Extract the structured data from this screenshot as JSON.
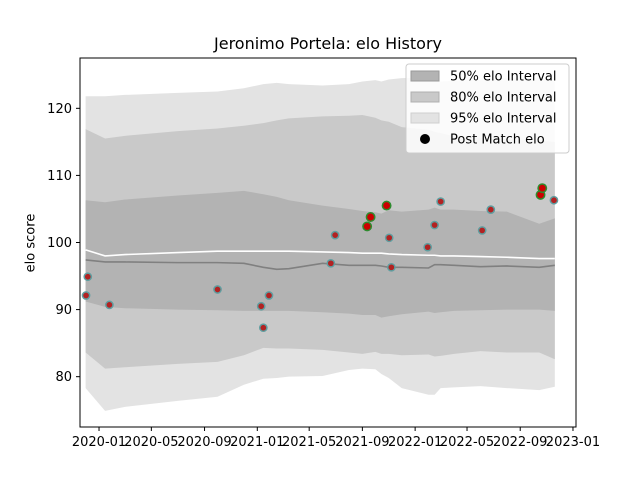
{
  "chart_data": {
    "type": "line",
    "title": "Jeronimo Portela: elo History",
    "xlabel": "",
    "ylabel": "elo score",
    "xlim": [
      "2019-11-18",
      "2023-01-08"
    ],
    "ylim": [
      72.5,
      127.5
    ],
    "x_ticks": [
      "2020-01",
      "2020-05",
      "2020-09",
      "2021-01",
      "2021-05",
      "2021-09",
      "2022-01",
      "2022-05",
      "2022-09",
      "2023-01"
    ],
    "y_ticks": [
      80,
      90,
      100,
      110,
      120
    ],
    "grid": false,
    "legend_position": "top-right",
    "legend": {
      "band50": "50% elo Interval",
      "band80": "80% elo Interval",
      "band95": "95% elo Interval",
      "points": "Post Match elo"
    },
    "colors": {
      "band50": "#b3b3b3",
      "band80": "#c9c9c9",
      "band95": "#e3e3e3",
      "median_line": "#808080",
      "mean_line": "#ffffff",
      "point_fill_red": "#cc0000",
      "point_fill_dark": "#b22222",
      "point_edge_green": "#2e8b2e",
      "point_edge_teal": "#5f9ea0"
    },
    "x": [
      "2019-12-01",
      "2020-01-15",
      "2020-03-01",
      "2020-07-01",
      "2020-10-01",
      "2020-12-01",
      "2021-01-15",
      "2021-02-15",
      "2021-03-15",
      "2021-06-01",
      "2021-08-01",
      "2021-09-01",
      "2021-10-01",
      "2021-10-15",
      "2021-11-01",
      "2021-12-01",
      "2022-02-01",
      "2022-02-15",
      "2022-03-01",
      "2022-04-01",
      "2022-06-01",
      "2022-08-01",
      "2022-10-15",
      "2022-11-20"
    ],
    "bands": {
      "p50_upper": [
        106.3,
        106.0,
        106.4,
        107.0,
        107.4,
        107.7,
        107.2,
        106.8,
        106.3,
        105.5,
        105.0,
        104.7,
        104.5,
        104.3,
        104.8,
        104.6,
        104.9,
        105.2,
        104.9,
        104.9,
        104.7,
        104.6,
        102.8,
        103.6
      ],
      "p50_lower": [
        91.2,
        90.4,
        90.2,
        90.0,
        89.9,
        89.8,
        89.8,
        89.8,
        89.8,
        89.6,
        89.4,
        89.2,
        89.2,
        88.8,
        89.0,
        89.3,
        89.7,
        89.5,
        89.6,
        89.8,
        89.9,
        90.0,
        90.0,
        89.8
      ],
      "p80_upper": [
        116.9,
        115.5,
        115.9,
        116.6,
        117.0,
        117.4,
        117.8,
        118.2,
        118.5,
        118.8,
        118.9,
        119.0,
        118.6,
        118.2,
        118.0,
        117.2,
        116.8,
        116.5,
        116.3,
        115.8,
        115.6,
        115.4,
        115.2,
        115.0
      ],
      "p80_lower": [
        83.6,
        81.2,
        81.4,
        81.9,
        82.2,
        83.2,
        84.3,
        84.2,
        84.2,
        84.0,
        83.6,
        83.4,
        83.7,
        83.4,
        83.4,
        83.2,
        83.3,
        83.0,
        83.1,
        83.4,
        83.8,
        83.6,
        83.6,
        82.6
      ],
      "p95_upper": [
        121.8,
        121.8,
        122.0,
        122.3,
        122.5,
        123.0,
        123.6,
        123.8,
        123.6,
        123.4,
        123.6,
        124.0,
        124.2,
        124.0,
        124.3,
        124.5,
        124.6,
        124.2,
        124.0,
        124.1,
        124.3,
        124.5,
        124.5,
        124.0
      ],
      "p95_lower": [
        78.3,
        74.9,
        75.5,
        76.4,
        77.0,
        78.8,
        79.7,
        79.8,
        80.0,
        80.1,
        81.0,
        81.2,
        81.1,
        80.4,
        79.8,
        78.3,
        77.3,
        77.3,
        78.3,
        78.4,
        78.6,
        78.3,
        78.0,
        78.5
      ]
    },
    "median": [
      97.4,
      97.1,
      97.1,
      97.0,
      97.0,
      96.9,
      96.3,
      96.0,
      96.1,
      96.9,
      96.6,
      96.6,
      96.6,
      96.5,
      96.3,
      96.3,
      96.2,
      96.7,
      96.7,
      96.6,
      96.4,
      96.5,
      96.3,
      96.6
    ],
    "mean": [
      98.9,
      98.0,
      98.2,
      98.5,
      98.7,
      98.7,
      98.7,
      98.7,
      98.7,
      98.6,
      98.5,
      98.4,
      98.4,
      98.4,
      98.3,
      98.2,
      98.1,
      98.1,
      98.0,
      98.0,
      97.9,
      97.8,
      97.6,
      97.6
    ],
    "points": [
      {
        "x": "2019-12-02",
        "y": 92.1,
        "style": "dark"
      },
      {
        "x": "2019-12-06",
        "y": 94.9,
        "style": "dark"
      },
      {
        "x": "2020-01-25",
        "y": 90.7,
        "style": "dark"
      },
      {
        "x": "2020-10-01",
        "y": 93.0,
        "style": "dark"
      },
      {
        "x": "2021-01-10",
        "y": 90.5,
        "style": "dark"
      },
      {
        "x": "2021-01-15",
        "y": 87.3,
        "style": "dark"
      },
      {
        "x": "2021-01-28",
        "y": 92.1,
        "style": "dark"
      },
      {
        "x": "2021-06-20",
        "y": 96.9,
        "style": "dark"
      },
      {
        "x": "2021-06-30",
        "y": 101.1,
        "style": "dark"
      },
      {
        "x": "2021-09-12",
        "y": 102.4,
        "style": "red"
      },
      {
        "x": "2021-09-20",
        "y": 103.8,
        "style": "red"
      },
      {
        "x": "2021-10-27",
        "y": 105.5,
        "style": "red"
      },
      {
        "x": "2021-11-02",
        "y": 100.7,
        "style": "dark"
      },
      {
        "x": "2021-11-07",
        "y": 96.3,
        "style": "dark"
      },
      {
        "x": "2022-01-30",
        "y": 99.3,
        "style": "dark"
      },
      {
        "x": "2022-02-15",
        "y": 102.6,
        "style": "dark"
      },
      {
        "x": "2022-03-01",
        "y": 106.1,
        "style": "dark"
      },
      {
        "x": "2022-06-05",
        "y": 101.8,
        "style": "dark"
      },
      {
        "x": "2022-06-25",
        "y": 104.9,
        "style": "dark"
      },
      {
        "x": "2022-10-18",
        "y": 107.1,
        "style": "red"
      },
      {
        "x": "2022-10-22",
        "y": 108.1,
        "style": "red"
      },
      {
        "x": "2022-11-18",
        "y": 106.3,
        "style": "dark"
      }
    ]
  }
}
